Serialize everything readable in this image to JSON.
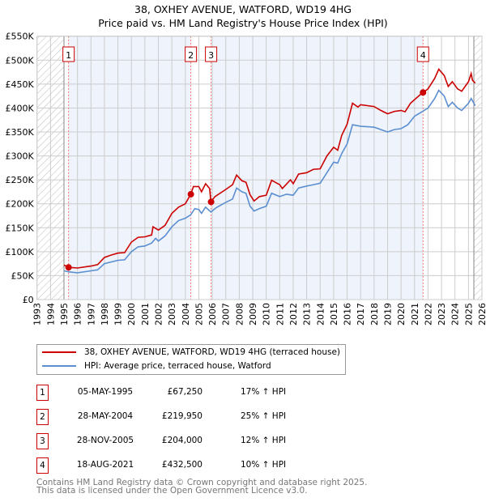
{
  "title_line1": "38, OXHEY AVENUE, WATFORD, WD19 4HG",
  "title_line2": "Price paid vs. HM Land Registry's House Price Index (HPI)",
  "colors": {
    "property": "#cc0000",
    "hpi": "#5b8fd0",
    "shade": "#eef3fc",
    "grid": "#cccccc"
  },
  "chart_data": {
    "type": "line",
    "title": "Price paid vs. HM Land Registry's House Price Index (HPI)",
    "xlim": [
      1993,
      2026
    ],
    "ylim": [
      0,
      550000
    ],
    "y_ticks": [
      0,
      50000,
      100000,
      150000,
      200000,
      250000,
      300000,
      350000,
      400000,
      450000,
      500000,
      550000
    ],
    "y_tick_labels": [
      "£0",
      "£50K",
      "£100K",
      "£150K",
      "£200K",
      "£250K",
      "£300K",
      "£350K",
      "£400K",
      "£450K",
      "£500K",
      "£550K"
    ],
    "x_tick_labels": [
      "1993",
      "1994",
      "1995",
      "1996",
      "1997",
      "1998",
      "1999",
      "2000",
      "2001",
      "2002",
      "2003",
      "2004",
      "2005",
      "2006",
      "2007",
      "2008",
      "2009",
      "2010",
      "2011",
      "2012",
      "2013",
      "2014",
      "2015",
      "2016",
      "2017",
      "2018",
      "2019",
      "2020",
      "2021",
      "2022",
      "2023",
      "2024",
      "2025",
      "2026"
    ],
    "grid": true,
    "hatched_ranges": [
      [
        1993,
        1995
      ],
      [
        2025.4,
        2026
      ]
    ],
    "series": [
      {
        "name": "38, OXHEY AVENUE, WATFORD, WD19 4HG (terraced house)",
        "x": [
          1995,
          1995.35,
          1996,
          1997,
          1997.5,
          1998,
          1998.5,
          1999,
          1999.5,
          2000,
          2000.5,
          2001,
          2001.5,
          2001.6,
          2002,
          2002.5,
          2003,
          2003.5,
          2004,
          2004.4,
          2004.6,
          2005,
          2005.2,
          2005.5,
          2005.8,
          2005.9,
          2006.2,
          2007,
          2007.5,
          2007.8,
          2008.2,
          2008.5,
          2008.8,
          2009.1,
          2009.5,
          2010,
          2010.4,
          2011,
          2011.2,
          2011.8,
          2012,
          2012.4,
          2013,
          2013.5,
          2014,
          2014.5,
          2015,
          2015.3,
          2015.6,
          2016,
          2016.4,
          2016.8,
          2017,
          2018,
          2018.5,
          2019,
          2019.5,
          2020,
          2020.3,
          2020.7,
          2021.3,
          2021.6,
          2022,
          2022.5,
          2022.8,
          2023.2,
          2023.5,
          2023.8,
          2024.2,
          2024.5,
          2025,
          2025.2,
          2025.3,
          2025.5
        ],
        "values": [
          72000,
          67250,
          66000,
          70000,
          73000,
          88000,
          93000,
          97000,
          98000,
          120000,
          130000,
          131000,
          135000,
          152000,
          145000,
          155000,
          180000,
          193000,
          200000,
          220000,
          236000,
          236000,
          225000,
          242000,
          232000,
          204000,
          215000,
          230000,
          240000,
          260000,
          248000,
          245000,
          219000,
          206000,
          215000,
          218000,
          249000,
          240000,
          232000,
          250000,
          242000,
          262000,
          265000,
          272000,
          273000,
          300000,
          318000,
          312000,
          343000,
          366000,
          410000,
          402000,
          407000,
          403000,
          395000,
          388000,
          393000,
          395000,
          392000,
          410000,
          425000,
          432000,
          440000,
          462000,
          481000,
          468000,
          445000,
          455000,
          440000,
          435000,
          455000,
          472000,
          458000,
          452000
        ]
      },
      {
        "name": "HPI: Average price, terraced house, Watford",
        "x": [
          1995,
          1995.35,
          1996,
          1997,
          1997.5,
          1998,
          1999,
          1999.5,
          2000,
          2000.5,
          2001,
          2001.5,
          2001.8,
          2002,
          2002.5,
          2003,
          2003.5,
          2004,
          2004.4,
          2004.7,
          2005,
          2005.2,
          2005.5,
          2005.9,
          2006.3,
          2007,
          2007.5,
          2007.8,
          2008.2,
          2008.5,
          2008.8,
          2009.1,
          2009.5,
          2010,
          2010.4,
          2011,
          2011.5,
          2012,
          2012.4,
          2013,
          2013.5,
          2014,
          2014.5,
          2015,
          2015.3,
          2015.6,
          2016,
          2016.4,
          2017,
          2018,
          2018.5,
          2019,
          2019.5,
          2020,
          2020.5,
          2021,
          2021.6,
          2022,
          2022.5,
          2022.8,
          2023.2,
          2023.5,
          2023.8,
          2024.2,
          2024.5,
          2025,
          2025.2,
          2025.5
        ],
        "values": [
          60000,
          58000,
          56000,
          60000,
          62000,
          75000,
          82000,
          83000,
          100000,
          110000,
          112000,
          118000,
          128000,
          122000,
          133000,
          152000,
          165000,
          170000,
          177000,
          190000,
          188000,
          180000,
          193000,
          183000,
          192000,
          203000,
          210000,
          233000,
          225000,
          222000,
          195000,
          185000,
          190000,
          195000,
          222000,
          215000,
          220000,
          218000,
          233000,
          237000,
          240000,
          243000,
          265000,
          287000,
          285000,
          305000,
          325000,
          365000,
          362000,
          360000,
          355000,
          350000,
          355000,
          357000,
          365000,
          383000,
          393000,
          400000,
          420000,
          437000,
          425000,
          403000,
          412000,
          400000,
          395000,
          410000,
          420000,
          405000
        ]
      }
    ],
    "sales": [
      {
        "label": "1",
        "x": 1995.34,
        "value": 67250
      },
      {
        "label": "2",
        "x": 2004.41,
        "value": 219950
      },
      {
        "label": "3",
        "x": 2005.91,
        "value": 204000
      },
      {
        "label": "4",
        "x": 2021.63,
        "value": 432500
      }
    ]
  },
  "legend": {
    "property": "38, OXHEY AVENUE, WATFORD, WD19 4HG (terraced house)",
    "hpi": "HPI: Average price, terraced house, Watford"
  },
  "transactions": [
    {
      "num": "1",
      "date": "05-MAY-1995",
      "price": "£67,250",
      "hpi": "17% ↑ HPI"
    },
    {
      "num": "2",
      "date": "28-MAY-2004",
      "price": "£219,950",
      "hpi": "25% ↑ HPI"
    },
    {
      "num": "3",
      "date": "28-NOV-2005",
      "price": "£204,000",
      "hpi": "12% ↑ HPI"
    },
    {
      "num": "4",
      "date": "18-AUG-2021",
      "price": "£432,500",
      "hpi": "10% ↑ HPI"
    }
  ],
  "footer": {
    "line1": "Contains HM Land Registry data © Crown copyright and database right 2025.",
    "line2": "This data is licensed under the Open Government Licence v3.0."
  }
}
